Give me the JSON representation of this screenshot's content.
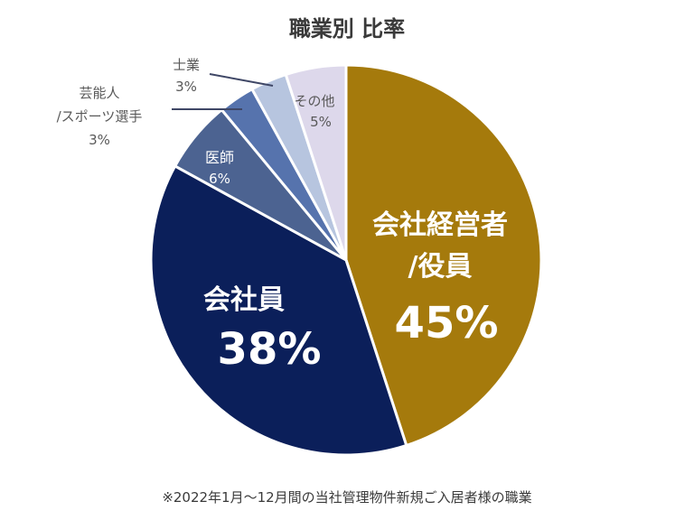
{
  "chart_data": {
    "type": "pie",
    "title": "職業別 比率",
    "footnote": "※2022年1月〜12月間の当社管理物件新規ご入居者様の職業",
    "slices": [
      {
        "label": "会社経営者/役員",
        "label_lines": [
          "会社経営者",
          "/役員"
        ],
        "value": 45,
        "value_label": "45%",
        "color": "#A57A0C"
      },
      {
        "label": "会社員",
        "label_lines": [
          "会社員"
        ],
        "value": 38,
        "value_label": "38%",
        "color": "#0B1F5A"
      },
      {
        "label": "医師",
        "label_lines": [
          "医師"
        ],
        "value": 6,
        "value_label": "6%",
        "color": "#4C6391"
      },
      {
        "label": "芸能人/スポーツ選手",
        "label_lines": [
          "芸能人",
          "/スポーツ選手"
        ],
        "value": 3,
        "value_label": "3%",
        "color": "#5673AD"
      },
      {
        "label": "士業",
        "label_lines": [
          "士業"
        ],
        "value": 3,
        "value_label": "3%",
        "color": "#B7C5DF"
      },
      {
        "label": "その他",
        "label_lines": [
          "その他"
        ],
        "value": 5,
        "value_label": "5%",
        "color": "#DDD8EB"
      }
    ]
  }
}
